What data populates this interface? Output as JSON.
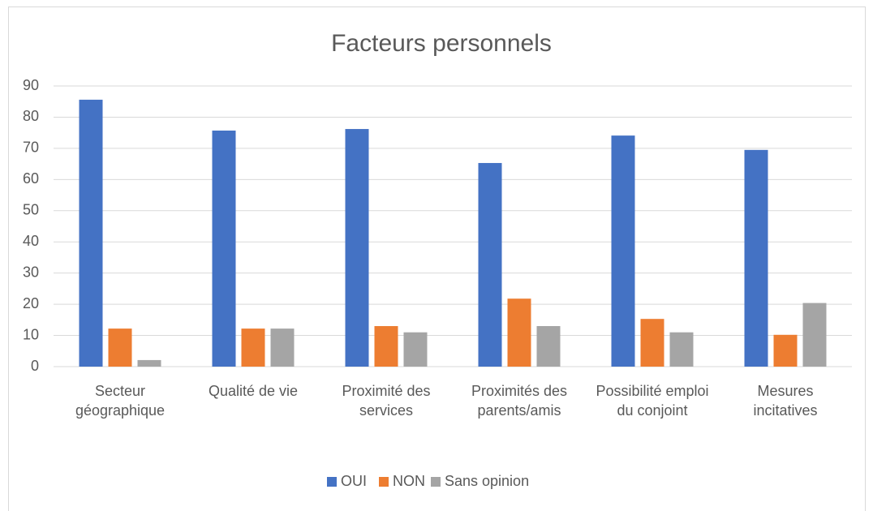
{
  "chart_data": {
    "type": "bar",
    "title": "Facteurs personnels",
    "categories": [
      "Secteur géographique",
      "Qualité de vie",
      "Proximité des services",
      "Proximités des parents/amis",
      "Possibilité emploi du conjoint",
      "Mesures incitatives"
    ],
    "series": [
      {
        "name": "OUI",
        "color": "#4472c4",
        "values": [
          85.6,
          75.7,
          76.2,
          65.3,
          74.1,
          69.5
        ]
      },
      {
        "name": "NON",
        "color": "#ed7d31",
        "values": [
          12.2,
          12.2,
          13.0,
          21.8,
          15.3,
          10.2
        ]
      },
      {
        "name": "Sans opinion",
        "color": "#a5a5a5",
        "values": [
          2.1,
          12.2,
          11.0,
          13.0,
          11.0,
          20.4
        ]
      }
    ],
    "ylim": [
      0,
      90
    ],
    "yticks": [
      0,
      10,
      20,
      30,
      40,
      50,
      60,
      70,
      80,
      90
    ],
    "grid": true,
    "legend": "bottom"
  }
}
